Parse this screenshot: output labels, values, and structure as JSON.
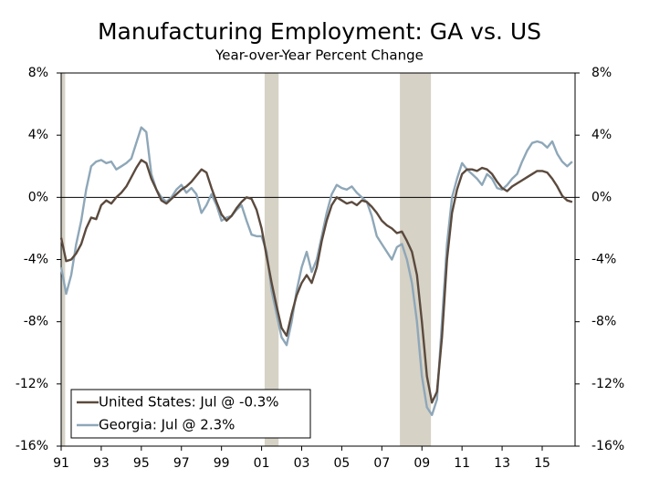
{
  "chart_data": {
    "type": "line",
    "title": "Manufacturing Employment: GA vs. US",
    "subtitle": "Year-over-Year Percent Change",
    "x": [
      1991,
      1991.25,
      1991.5,
      1991.75,
      1992,
      1992.25,
      1992.5,
      1992.75,
      1993,
      1993.25,
      1993.5,
      1993.75,
      1994,
      1994.25,
      1994.5,
      1994.75,
      1995,
      1995.25,
      1995.5,
      1995.75,
      1996,
      1996.25,
      1996.5,
      1996.75,
      1997,
      1997.25,
      1997.5,
      1997.75,
      1998,
      1998.25,
      1998.5,
      1998.75,
      1999,
      1999.25,
      1999.5,
      1999.75,
      2000,
      2000.25,
      2000.5,
      2000.75,
      2001,
      2001.25,
      2001.5,
      2001.75,
      2002,
      2002.25,
      2002.5,
      2002.75,
      2003,
      2003.25,
      2003.5,
      2003.75,
      2004,
      2004.25,
      2004.5,
      2004.75,
      2005,
      2005.25,
      2005.5,
      2005.75,
      2006,
      2006.25,
      2006.5,
      2006.75,
      2007,
      2007.25,
      2007.5,
      2007.75,
      2008,
      2008.25,
      2008.5,
      2008.75,
      2009,
      2009.25,
      2009.5,
      2009.75,
      2010,
      2010.25,
      2010.5,
      2010.75,
      2011,
      2011.25,
      2011.5,
      2011.75,
      2012,
      2012.25,
      2012.5,
      2012.75,
      2013,
      2013.25,
      2013.5,
      2013.75,
      2014,
      2014.25,
      2014.5,
      2014.75,
      2015,
      2015.25,
      2015.5,
      2015.75,
      2016,
      2016.25,
      2016.5
    ],
    "series": [
      {
        "name": "United States: Jul @ -0.3%",
        "color": "#5b4a3e",
        "values": [
          -2.6,
          -4.1,
          -4.0,
          -3.6,
          -3.0,
          -2.0,
          -1.3,
          -1.4,
          -0.5,
          -0.2,
          -0.4,
          0.0,
          0.3,
          0.7,
          1.3,
          1.9,
          2.4,
          2.2,
          1.2,
          0.5,
          -0.2,
          -0.4,
          -0.1,
          0.2,
          0.5,
          0.7,
          1.0,
          1.4,
          1.8,
          1.6,
          0.6,
          -0.3,
          -1.1,
          -1.5,
          -1.2,
          -0.7,
          -0.3,
          0.0,
          -0.1,
          -0.8,
          -2.0,
          -3.8,
          -5.5,
          -7.0,
          -8.4,
          -8.9,
          -7.5,
          -6.3,
          -5.5,
          -5.0,
          -5.5,
          -4.5,
          -2.8,
          -1.5,
          -0.5,
          0.0,
          -0.2,
          -0.4,
          -0.3,
          -0.5,
          -0.2,
          -0.3,
          -0.6,
          -1.0,
          -1.5,
          -1.8,
          -2.0,
          -2.3,
          -2.2,
          -2.8,
          -3.5,
          -5.0,
          -8.0,
          -11.5,
          -13.2,
          -12.5,
          -9.0,
          -4.0,
          -1.0,
          0.5,
          1.5,
          1.8,
          1.8,
          1.7,
          1.9,
          1.8,
          1.5,
          1.0,
          0.6,
          0.4,
          0.7,
          0.9,
          1.1,
          1.3,
          1.5,
          1.7,
          1.7,
          1.6,
          1.2,
          0.7,
          0.1,
          -0.2,
          -0.3
        ]
      },
      {
        "name": "Georgia: Jul @ 2.3%",
        "color": "#8ea7b8",
        "values": [
          -4.5,
          -6.2,
          -5.0,
          -3.0,
          -1.5,
          0.5,
          2.0,
          2.3,
          2.4,
          2.2,
          2.3,
          1.8,
          2.0,
          2.2,
          2.5,
          3.5,
          4.5,
          4.2,
          1.5,
          0.5,
          0.0,
          -0.3,
          0.0,
          0.5,
          0.8,
          0.3,
          0.6,
          0.2,
          -1.0,
          -0.5,
          0.2,
          -0.5,
          -1.5,
          -1.3,
          -1.2,
          -0.8,
          -0.5,
          -1.5,
          -2.4,
          -2.5,
          -2.5,
          -3.5,
          -6.0,
          -7.5,
          -9.0,
          -9.5,
          -8.0,
          -6.0,
          -4.5,
          -3.5,
          -4.8,
          -4.0,
          -2.5,
          -1.0,
          0.2,
          0.8,
          0.6,
          0.5,
          0.7,
          0.3,
          0.0,
          -0.3,
          -1.2,
          -2.5,
          -3.0,
          -3.5,
          -4.0,
          -3.2,
          -3.0,
          -4.0,
          -5.5,
          -8.0,
          -11.5,
          -13.5,
          -14.0,
          -13.0,
          -8.0,
          -3.0,
          0.0,
          1.2,
          2.2,
          1.8,
          1.5,
          1.2,
          0.8,
          1.5,
          1.2,
          0.6,
          0.5,
          0.8,
          1.2,
          1.5,
          2.3,
          3.0,
          3.5,
          3.6,
          3.5,
          3.2,
          3.6,
          2.8,
          2.3,
          2.0,
          2.3
        ]
      }
    ],
    "recessions": [
      [
        1991,
        1991.2
      ],
      [
        2001.15,
        2001.85
      ],
      [
        2007.9,
        2009.45
      ]
    ],
    "recession_color": "#d6d2c6",
    "xlim": [
      1991,
      2016.64
    ],
    "xticks": [
      {
        "value": 1991,
        "label": "91"
      },
      {
        "value": 1993,
        "label": "93"
      },
      {
        "value": 1995,
        "label": "95"
      },
      {
        "value": 1997,
        "label": "97"
      },
      {
        "value": 1999,
        "label": "99"
      },
      {
        "value": 2001,
        "label": "01"
      },
      {
        "value": 2003,
        "label": "03"
      },
      {
        "value": 2005,
        "label": "05"
      },
      {
        "value": 2007,
        "label": "07"
      },
      {
        "value": 2009,
        "label": "09"
      },
      {
        "value": 2011,
        "label": "11"
      },
      {
        "value": 2013,
        "label": "13"
      },
      {
        "value": 2015,
        "label": "15"
      }
    ],
    "ylim": [
      -16,
      8
    ],
    "yticks": [
      {
        "value": -16,
        "label": "-16%"
      },
      {
        "value": -12,
        "label": "-12%"
      },
      {
        "value": -8,
        "label": "-8%"
      },
      {
        "value": -4,
        "label": "-4%"
      },
      {
        "value": 0,
        "label": "0%"
      },
      {
        "value": 4,
        "label": "4%"
      },
      {
        "value": 8,
        "label": "8%"
      }
    ],
    "y2lim": [
      -16,
      8
    ],
    "y2ticks": [
      {
        "value": -16,
        "label": "-16%"
      },
      {
        "value": -12,
        "label": "-12%"
      },
      {
        "value": -8,
        "label": "-8%"
      },
      {
        "value": -4,
        "label": "-4%"
      },
      {
        "value": 0,
        "label": "0%"
      },
      {
        "value": 4,
        "label": "4%"
      },
      {
        "value": 8,
        "label": "8%"
      }
    ],
    "legend": "lower left"
  }
}
